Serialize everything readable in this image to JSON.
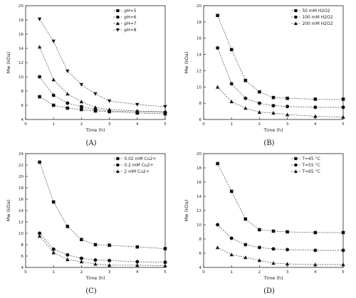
{
  "figure": {
    "panel_labels": [
      "(A)",
      "(B)",
      "(C)",
      "(D)"
    ]
  },
  "chart_data": [
    {
      "type": "line",
      "panel": "(A)",
      "xlabel": "Time (h)",
      "ylabel": "Mw (kDa)",
      "xlim": [
        0,
        5
      ],
      "ylim": [
        4,
        20
      ],
      "xticks": [
        0,
        1,
        2,
        3,
        4,
        5
      ],
      "yticks": [
        4,
        6,
        8,
        10,
        12,
        14,
        16,
        18,
        20
      ],
      "legend_position": "top-right",
      "x": [
        0.5,
        1,
        1.5,
        2,
        2.5,
        3,
        4,
        5
      ],
      "series": [
        {
          "name": "pH=5",
          "marker": "square",
          "values": [
            7.2,
            6.0,
            5.6,
            5.4,
            5.2,
            5.1,
            4.9,
            4.8
          ]
        },
        {
          "name": "pH=6",
          "marker": "circle",
          "values": [
            10.0,
            7.4,
            6.3,
            5.8,
            5.4,
            5.2,
            5.1,
            5.0
          ]
        },
        {
          "name": "pH=7",
          "marker": "triangle",
          "values": [
            14.2,
            9.6,
            7.6,
            6.5,
            5.7,
            5.4,
            5.2,
            5.1
          ]
        },
        {
          "name": "pH=8",
          "marker": "tri-down",
          "values": [
            18.1,
            15.0,
            10.8,
            8.9,
            7.6,
            6.6,
            6.1,
            5.8
          ]
        }
      ]
    },
    {
      "type": "line",
      "panel": "(B)",
      "xlabel": "Time (h)",
      "ylabel": "Mw (kDa)",
      "xlim": [
        0,
        5
      ],
      "ylim": [
        6,
        20
      ],
      "xticks": [
        0,
        1,
        2,
        3,
        4,
        5
      ],
      "yticks": [
        6,
        8,
        10,
        12,
        14,
        16,
        18,
        20
      ],
      "legend_position": "top-right",
      "x": [
        0.5,
        1,
        1.5,
        2,
        2.5,
        3,
        4,
        5
      ],
      "series": [
        {
          "name": "50 mM H2O2",
          "marker": "square",
          "values": [
            18.8,
            14.6,
            10.8,
            9.4,
            8.7,
            8.6,
            8.5,
            8.5
          ]
        },
        {
          "name": "100 mM H2O2",
          "marker": "circle",
          "values": [
            14.8,
            10.4,
            8.6,
            8.0,
            7.7,
            7.6,
            7.5,
            7.5
          ]
        },
        {
          "name": "200 mM H2O2",
          "marker": "triangle",
          "values": [
            10.0,
            8.2,
            7.4,
            6.9,
            6.8,
            6.6,
            6.4,
            6.3
          ]
        }
      ]
    },
    {
      "type": "line",
      "panel": "(C)",
      "xlabel": "Time (h)",
      "ylabel": "Mw (kDa)",
      "xlim": [
        0,
        5
      ],
      "ylim": [
        4,
        24
      ],
      "xticks": [
        0,
        1,
        2,
        3,
        4,
        5
      ],
      "yticks": [
        4,
        6,
        8,
        10,
        12,
        14,
        16,
        18,
        20,
        22,
        24
      ],
      "legend_position": "top-right",
      "x": [
        0.5,
        1,
        1.5,
        2,
        2.5,
        3,
        4,
        5
      ],
      "series": [
        {
          "name": "0.02 mM Cu2+",
          "marker": "square",
          "values": [
            22.5,
            15.5,
            11.2,
            8.9,
            8.0,
            7.9,
            7.6,
            7.3
          ]
        },
        {
          "name": "0.2 mM Cu2+",
          "marker": "circle",
          "values": [
            10.0,
            7.2,
            6.2,
            5.6,
            5.3,
            5.2,
            5.0,
            4.9
          ]
        },
        {
          "name": "2 mM Cu2+",
          "marker": "triangle",
          "values": [
            9.5,
            6.6,
            5.4,
            5.0,
            4.6,
            4.4,
            4.4,
            4.3
          ]
        }
      ]
    },
    {
      "type": "line",
      "panel": "(D)",
      "xlabel": "Time (h)",
      "ylabel": "Mw (kDa)",
      "xlim": [
        0,
        5
      ],
      "ylim": [
        4,
        20
      ],
      "xticks": [
        0,
        1,
        2,
        3,
        4,
        5
      ],
      "yticks": [
        4,
        6,
        8,
        10,
        12,
        14,
        16,
        18,
        20
      ],
      "legend_position": "top-right",
      "x": [
        0.5,
        1,
        1.5,
        2,
        2.5,
        3,
        4,
        5
      ],
      "series": [
        {
          "name": "T=45 °C",
          "marker": "square",
          "values": [
            18.6,
            14.7,
            10.8,
            9.3,
            9.1,
            9.0,
            8.9,
            8.9
          ]
        },
        {
          "name": "T=55 °C",
          "marker": "circle",
          "values": [
            10.0,
            8.1,
            7.2,
            6.8,
            6.6,
            6.5,
            6.4,
            6.4
          ]
        },
        {
          "name": "T=65 °C",
          "marker": "triangle",
          "values": [
            6.8,
            5.8,
            5.4,
            5.0,
            4.6,
            4.5,
            4.4,
            4.4
          ]
        }
      ]
    }
  ]
}
